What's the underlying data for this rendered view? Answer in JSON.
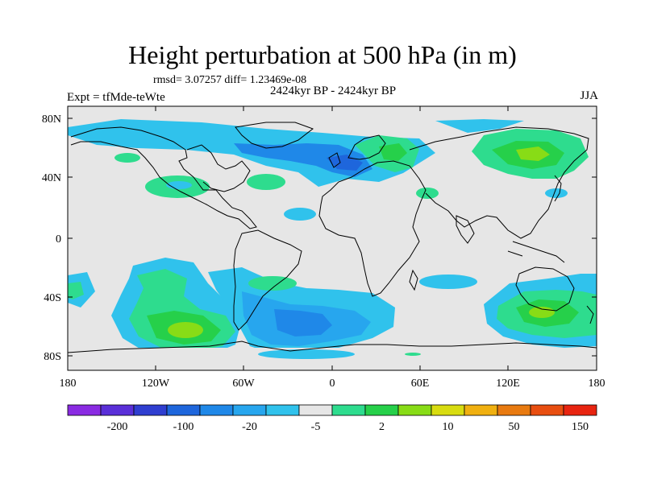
{
  "header": {
    "title": "Height perturbation at 500 hPa (in m)",
    "stats": "rmsd= 3.07257 diff= 1.23469e-08",
    "period": "2424kyr BP - 2424kyr BP",
    "experiment": "Expt = tfMde-teWte",
    "season": "JJA"
  },
  "axes": {
    "lat_ticks": [
      "80N",
      "40N",
      "0",
      "40S",
      "80S"
    ],
    "lon_ticks": [
      "180",
      "120W",
      "60W",
      "0",
      "60E",
      "120E",
      "180"
    ]
  },
  "colorbar": {
    "labels": [
      "-200",
      "-100",
      "-20",
      "-5",
      "2",
      "10",
      "50",
      "150"
    ],
    "colors": [
      "#8a2be2",
      "#5a2fd8",
      "#2f3ed0",
      "#1e66dc",
      "#1f88e8",
      "#27a6ee",
      "#30c2ec",
      "#e6e6e6",
      "#2edc8e",
      "#26d04a",
      "#88dc16",
      "#d8dc10",
      "#f0b010",
      "#e87a10",
      "#e84e10",
      "#e82410"
    ]
  },
  "colors": {
    "background": "#e6e6e6",
    "coastline": "#000000"
  }
}
